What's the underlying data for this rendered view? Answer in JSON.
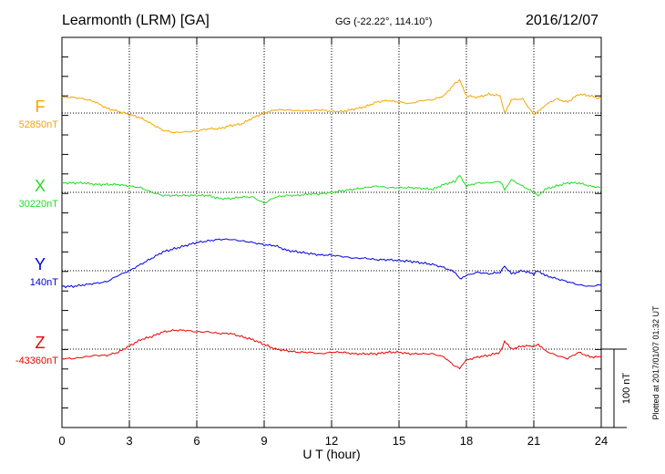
{
  "header": {
    "station": "Learmonth (LRM)  [GA]",
    "coords": "GG (-22.22°, 114.10°)",
    "date": "2016/12/07"
  },
  "side_note": "Plotted at 2017/01/07 01:32 UT",
  "scale_label": "100 nT",
  "chart_data": {
    "type": "line",
    "xlabel": "U T (hour)",
    "xlim": [
      0,
      24
    ],
    "xticks": [
      0,
      3,
      6,
      9,
      12,
      15,
      18,
      21,
      24
    ],
    "tick_labels": [
      "0",
      "3",
      "6",
      "9",
      "12",
      "15",
      "18",
      "21",
      "24"
    ],
    "grid": true,
    "series": [
      {
        "name": "F",
        "baseline_label": "52850nT",
        "color": "#f5a500",
        "x": [
          0,
          0.5,
          1,
          1.5,
          2,
          2.5,
          3,
          3.5,
          4,
          4.5,
          5,
          5.5,
          6,
          6.5,
          7,
          7.5,
          8,
          8.5,
          9,
          9.5,
          10,
          10.5,
          11,
          11.5,
          12,
          12.5,
          13,
          13.5,
          14,
          14.5,
          15,
          15.5,
          16,
          16.5,
          17,
          17.5,
          17.7,
          18,
          18.5,
          19,
          19.5,
          19.7,
          20,
          20.5,
          21,
          21.2,
          21.5,
          22,
          22.5,
          23,
          23.5,
          24
        ],
        "y": [
          20,
          20,
          18,
          14,
          6,
          2,
          -2,
          -6,
          -14,
          -22,
          -25,
          -24,
          -23,
          -20,
          -20,
          -16,
          -14,
          -6,
          0,
          4,
          4,
          3,
          3,
          4,
          2,
          2,
          5,
          8,
          14,
          16,
          14,
          12,
          16,
          17,
          22,
          38,
          42,
          22,
          20,
          24,
          22,
          0,
          17,
          18,
          -2,
          2,
          10,
          18,
          14,
          24,
          22,
          18
        ]
      },
      {
        "name": "X",
        "baseline_label": "30220nT",
        "color": "#22dd22",
        "x": [
          0,
          0.5,
          1,
          1.5,
          2,
          2.5,
          3,
          3.5,
          4,
          4.5,
          5,
          5.5,
          6,
          6.5,
          7,
          7.5,
          8,
          8.5,
          9,
          9.5,
          10,
          10.5,
          11,
          11.5,
          12,
          12.5,
          13,
          13.5,
          14,
          14.5,
          15,
          15.5,
          16,
          16.5,
          17,
          17.5,
          17.7,
          18,
          18.5,
          19,
          19.5,
          19.7,
          20,
          20.5,
          21,
          21.2,
          21.5,
          22,
          22.5,
          23,
          23.5,
          24
        ],
        "y": [
          12,
          12,
          12,
          10,
          10,
          10,
          8,
          6,
          0,
          -4,
          -4,
          -4,
          -4,
          -4,
          -8,
          -8,
          -6,
          -6,
          -14,
          -6,
          -4,
          -4,
          -2,
          -2,
          0,
          2,
          4,
          6,
          8,
          6,
          6,
          6,
          5,
          4,
          10,
          14,
          22,
          8,
          12,
          12,
          14,
          4,
          16,
          8,
          0,
          -4,
          4,
          8,
          12,
          12,
          8,
          6
        ]
      },
      {
        "name": "Y",
        "baseline_label": "140nT",
        "color": "#0000dd",
        "x": [
          0,
          0.5,
          1,
          1.5,
          2,
          2.5,
          3,
          3.5,
          4,
          4.5,
          5,
          5.5,
          6,
          6.5,
          7,
          7.5,
          8,
          8.5,
          9,
          9.5,
          10,
          10.5,
          11,
          11.5,
          12,
          12.5,
          13,
          13.5,
          14,
          14.5,
          15,
          15.5,
          16,
          16.5,
          17,
          17.5,
          17.7,
          18,
          18.5,
          19,
          19.5,
          19.7,
          20,
          20.5,
          21,
          21.2,
          21.5,
          22,
          22.5,
          23,
          23.5,
          24
        ],
        "y": [
          -20,
          -20,
          -18,
          -16,
          -14,
          -6,
          0,
          8,
          16,
          24,
          28,
          32,
          36,
          38,
          40,
          40,
          38,
          36,
          33,
          32,
          26,
          24,
          22,
          20,
          20,
          18,
          16,
          16,
          14,
          14,
          13,
          12,
          10,
          8,
          4,
          -2,
          -10,
          -6,
          -2,
          -4,
          -2,
          6,
          -4,
          0,
          -4,
          0,
          -6,
          -10,
          -14,
          -18,
          -20,
          -18
        ]
      },
      {
        "name": "Z",
        "baseline_label": "-43360nT",
        "color": "#ee0000",
        "x": [
          0,
          0.5,
          1,
          1.5,
          2,
          2.5,
          3,
          3.5,
          4,
          4.5,
          5,
          5.5,
          6,
          6.5,
          7,
          7.5,
          8,
          8.5,
          9,
          9.5,
          10,
          10.5,
          11,
          11.5,
          12,
          12.5,
          13,
          13.5,
          14,
          14.5,
          15,
          15.5,
          16,
          16.5,
          17,
          17.5,
          17.7,
          18,
          18.5,
          19,
          19.5,
          19.7,
          20,
          20.5,
          21,
          21.2,
          21.5,
          22,
          22.5,
          23,
          23.5,
          24
        ],
        "y": [
          -12,
          -12,
          -10,
          -8,
          -8,
          -4,
          4,
          12,
          16,
          22,
          24,
          24,
          22,
          22,
          20,
          20,
          16,
          12,
          6,
          0,
          -2,
          -4,
          -4,
          -6,
          -4,
          -4,
          -6,
          -6,
          -6,
          -4,
          -4,
          -6,
          -6,
          -6,
          -10,
          -22,
          -24,
          -14,
          -10,
          -8,
          -4,
          10,
          0,
          4,
          4,
          6,
          -2,
          -8,
          -12,
          -4,
          -10,
          -10
        ]
      }
    ],
    "scale_bar_nT": 100
  }
}
